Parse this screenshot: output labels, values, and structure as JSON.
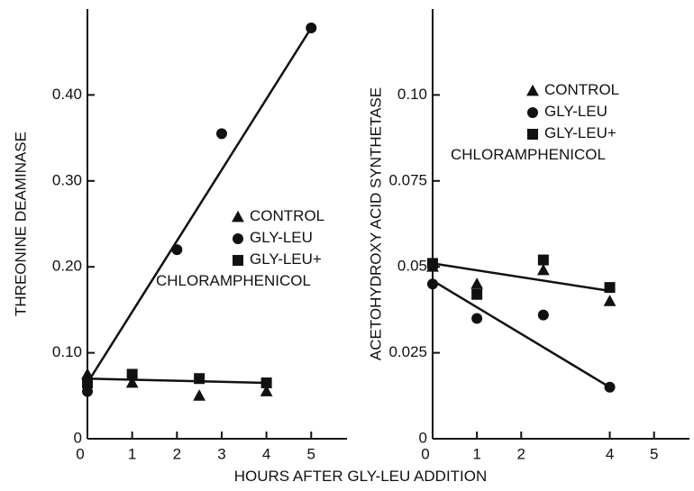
{
  "xlabel": "HOURS AFTER GLY-LEU ADDITION",
  "chart_data": [
    {
      "type": "scatter",
      "ylabel": "THREONINE DEAMINASE",
      "xlim": [
        0,
        5.8
      ],
      "ylim": [
        0,
        0.5
      ],
      "xticks": [
        0,
        1,
        2,
        3,
        4,
        5
      ],
      "yticks": [
        0,
        {
          "value": 0.1,
          "label": "0.10"
        },
        {
          "value": 0.2,
          "label": "0.20"
        },
        {
          "value": 0.3,
          "label": "0.30"
        },
        {
          "value": 0.4,
          "label": "0.40"
        }
      ],
      "series": [
        {
          "name": "CONTROL",
          "marker": "triangle",
          "color": "#111111",
          "x": [
            0,
            1,
            2.5,
            4
          ],
          "values": [
            0.075,
            0.065,
            0.05,
            0.055
          ]
        },
        {
          "name": "GLY-LEU",
          "marker": "circle",
          "color": "#111111",
          "x": [
            0,
            2,
            3,
            5
          ],
          "values": [
            0.055,
            0.22,
            0.355,
            0.478
          ]
        },
        {
          "name": "GLY-LEU+ CHLORAMPHENICOL",
          "marker": "square",
          "color": "#111111",
          "x": [
            0,
            1,
            2.5,
            4
          ],
          "values": [
            0.065,
            0.075,
            0.07,
            0.065
          ]
        }
      ],
      "fit_lines": [
        {
          "x": [
            0,
            5
          ],
          "values": [
            0.065,
            0.478
          ]
        },
        {
          "x": [
            0,
            4
          ],
          "values": [
            0.07,
            0.065
          ]
        }
      ]
    },
    {
      "type": "scatter",
      "ylabel": "ACETOHYDROXY ACID SYNTHETASE",
      "xlim": [
        0,
        5.8
      ],
      "ylim": [
        0,
        0.125
      ],
      "xticks": [
        0,
        1,
        2,
        4,
        5
      ],
      "yticks": [
        0,
        0.025,
        0.05,
        0.075,
        {
          "value": 0.1,
          "label": "0.10"
        }
      ],
      "series": [
        {
          "name": "CONTROL",
          "marker": "triangle",
          "color": "#111111",
          "x": [
            0,
            1,
            2.5,
            4
          ],
          "values": [
            0.05,
            0.045,
            0.049,
            0.04
          ]
        },
        {
          "name": "GLY-LEU",
          "marker": "circle",
          "color": "#111111",
          "x": [
            0,
            1,
            2.5,
            4
          ],
          "values": [
            0.045,
            0.035,
            0.036,
            0.015
          ]
        },
        {
          "name": "GLY-LEU+ CHLORAMPHENICOL",
          "marker": "square",
          "color": "#111111",
          "x": [
            0,
            1,
            2.5,
            4
          ],
          "values": [
            0.051,
            0.042,
            0.052,
            0.044
          ]
        }
      ],
      "fit_lines": [
        {
          "x": [
            0,
            4
          ],
          "values": [
            0.051,
            0.043
          ]
        },
        {
          "x": [
            0,
            4
          ],
          "values": [
            0.046,
            0.015
          ]
        }
      ]
    }
  ]
}
